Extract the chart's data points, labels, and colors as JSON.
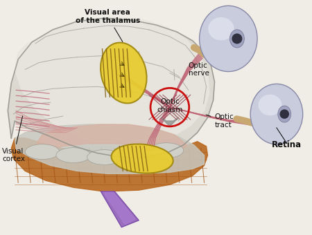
{
  "background_color": "#e8e8e8",
  "labels": {
    "visual_area_thalamus": "Visual area\nof the thalamus",
    "optic_nerve": "Optic\nnerve",
    "optic_chiasm": "Optic\nchiasm",
    "optic_tract": "Optic\ntract",
    "retina": "Retina",
    "visual_cortex": "Visual\ncortex"
  },
  "brain_color": "#d0cfc8",
  "brain_color2": "#e8e6e0",
  "brain_outline_color": "#888880",
  "yellow_area_color": "#e8cc30",
  "yellow_area_edge": "#a08810",
  "nerve_color": "#c06878",
  "nerve_color_dark": "#904050",
  "chiasm_circle_color": "#cc1010",
  "eye_body_color": "#c8cce8",
  "eye_highlight": "#e8e8f8",
  "eye_stalk_color": "#c8a870",
  "stem_color": "#9060b8",
  "base_color": "#b86820",
  "base_color2": "#a05010",
  "white_matter_color": "#dcdcd0",
  "gray_fold_color": "#a0a098"
}
